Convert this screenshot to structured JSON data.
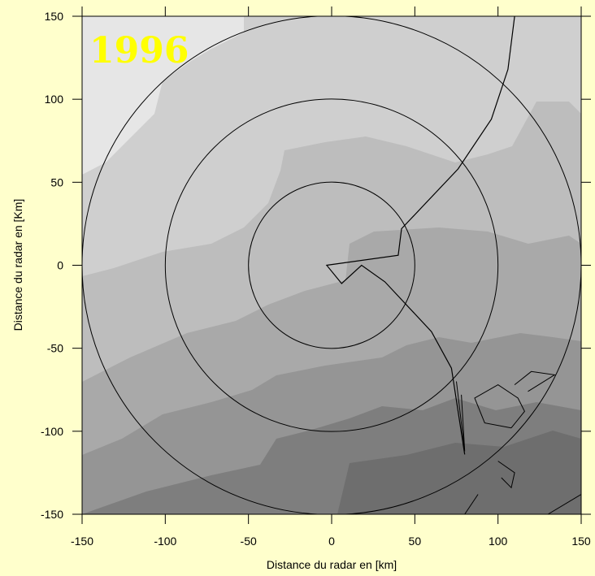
{
  "year_label": "1996",
  "x_axis": {
    "title": "Distance du radar en [km]",
    "range": [
      -150,
      150
    ],
    "ticks": [
      -150,
      -100,
      -50,
      0,
      50,
      100,
      150
    ]
  },
  "y_axis": {
    "title": "Distance du radar en [Km]",
    "range": [
      -150,
      150
    ],
    "ticks": [
      150,
      100,
      50,
      0,
      -50,
      -100,
      -150
    ]
  },
  "range_rings_km": [
    50,
    100,
    150
  ],
  "colors": {
    "background": "#FFFFCC",
    "year_label": "#FFFF00",
    "shades": [
      "#E6E6E6",
      "#CFCFCF",
      "#BDBDBD",
      "#A9A9A9",
      "#959595",
      "#7E7E7E"
    ]
  },
  "boundary_line_km": [
    [
      110,
      150
    ],
    [
      106,
      118
    ],
    [
      96,
      88
    ],
    [
      76,
      58
    ],
    [
      42,
      22
    ],
    [
      40,
      6
    ],
    [
      -3,
      0
    ],
    [
      6,
      -11
    ],
    [
      18,
      0
    ],
    [
      32,
      -10
    ],
    [
      60,
      -40
    ],
    [
      72,
      -62
    ],
    [
      80,
      -114
    ]
  ],
  "coast_contours_km": [
    [
      [
        75,
        -70
      ],
      [
        80,
        -112
      ],
      [
        78,
        -78
      ]
    ],
    [
      [
        108,
        -98
      ],
      [
        92,
        -95
      ],
      [
        86,
        -80
      ],
      [
        100,
        -72
      ],
      [
        112,
        -80
      ],
      [
        116,
        -88
      ],
      [
        108,
        -98
      ]
    ],
    [
      [
        110,
        -72
      ],
      [
        120,
        -64
      ],
      [
        134,
        -66
      ],
      [
        118,
        -76
      ]
    ],
    [
      [
        100,
        -118
      ],
      [
        110,
        -125
      ],
      [
        108,
        -134
      ],
      [
        102,
        -128
      ]
    ],
    [
      [
        88,
        -138
      ],
      [
        80,
        -150
      ]
    ],
    [
      [
        130,
        -150
      ],
      [
        150,
        -138
      ]
    ]
  ]
}
